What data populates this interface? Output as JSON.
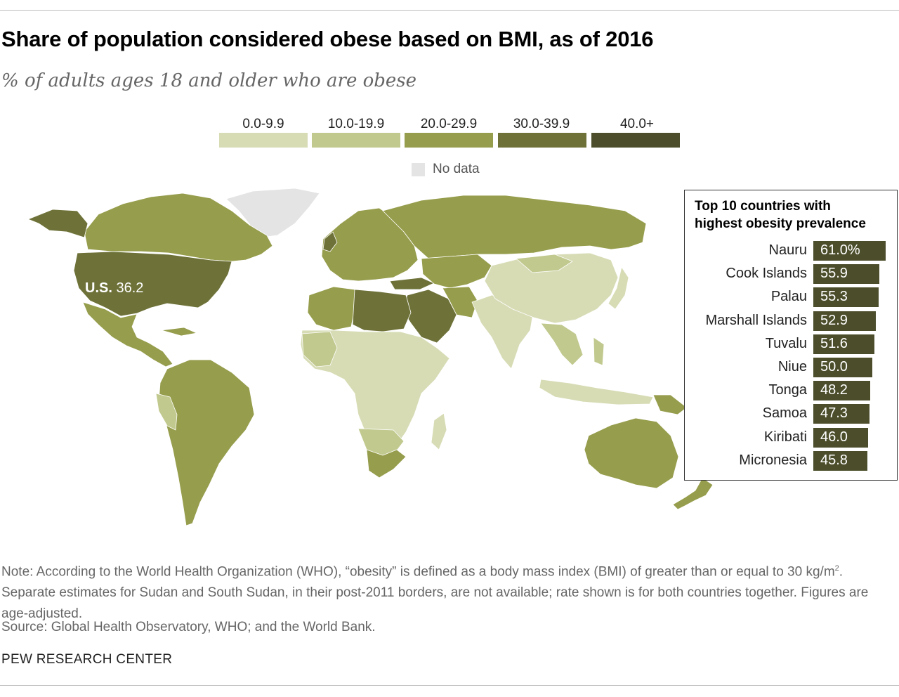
{
  "title": "Share of population considered obese based on BMI, as of 2016",
  "subtitle": "% of adults ages 18 and older who are obese",
  "legend": {
    "bins": [
      {
        "label": "0.0-9.9",
        "color": "#d7dcb5"
      },
      {
        "label": "10.0-19.9",
        "color": "#c1c98e"
      },
      {
        "label": "20.0-29.9",
        "color": "#969d4c"
      },
      {
        "label": "30.0-39.9",
        "color": "#6e7239"
      },
      {
        "label": "40.0+",
        "color": "#4c4e2b"
      }
    ],
    "no_data": {
      "label": "No data",
      "color": "#e4e4e4"
    }
  },
  "map": {
    "callout": {
      "name": "U.S.",
      "value": "36.2"
    },
    "country_color": "#969d4c",
    "ocean_color": "#ffffff"
  },
  "chart_data": {
    "type": "bar",
    "title": "Top 10 countries with highest obesity prevalence",
    "categories": [
      "Nauru",
      "Cook Islands",
      "Palau",
      "Marshall Islands",
      "Tuvalu",
      "Niue",
      "Tonga",
      "Samoa",
      "Kiribati",
      "Micronesia"
    ],
    "values": [
      61.0,
      55.9,
      55.3,
      52.9,
      51.6,
      50.0,
      48.2,
      47.3,
      46.0,
      45.8
    ],
    "value_labels": [
      "61.0%",
      "55.9",
      "55.3",
      "52.9",
      "51.6",
      "50.0",
      "48.2",
      "47.3",
      "46.0",
      "45.8"
    ],
    "xlim": [
      0,
      61.0
    ],
    "orientation": "horizontal",
    "bar_color": "#4c4e2b"
  },
  "top10_title_line1": "Top 10 countries with",
  "top10_title_line2": "highest obesity prevalence",
  "note_part1": "Note: According to the World Health Organization (WHO), “obesity” is defined as a body mass index (BMI) of greater than or equal to 30 kg/m",
  "note_sup": "2",
  "note_part2": ". Separate estimates for Sudan and South Sudan, in their post-2011 borders, are not available; rate shown is for both countries together. Figures are age-adjusted.",
  "source": "Source: Global Health Observatory, WHO; and the World Bank.",
  "brand": "PEW RESEARCH CENTER"
}
